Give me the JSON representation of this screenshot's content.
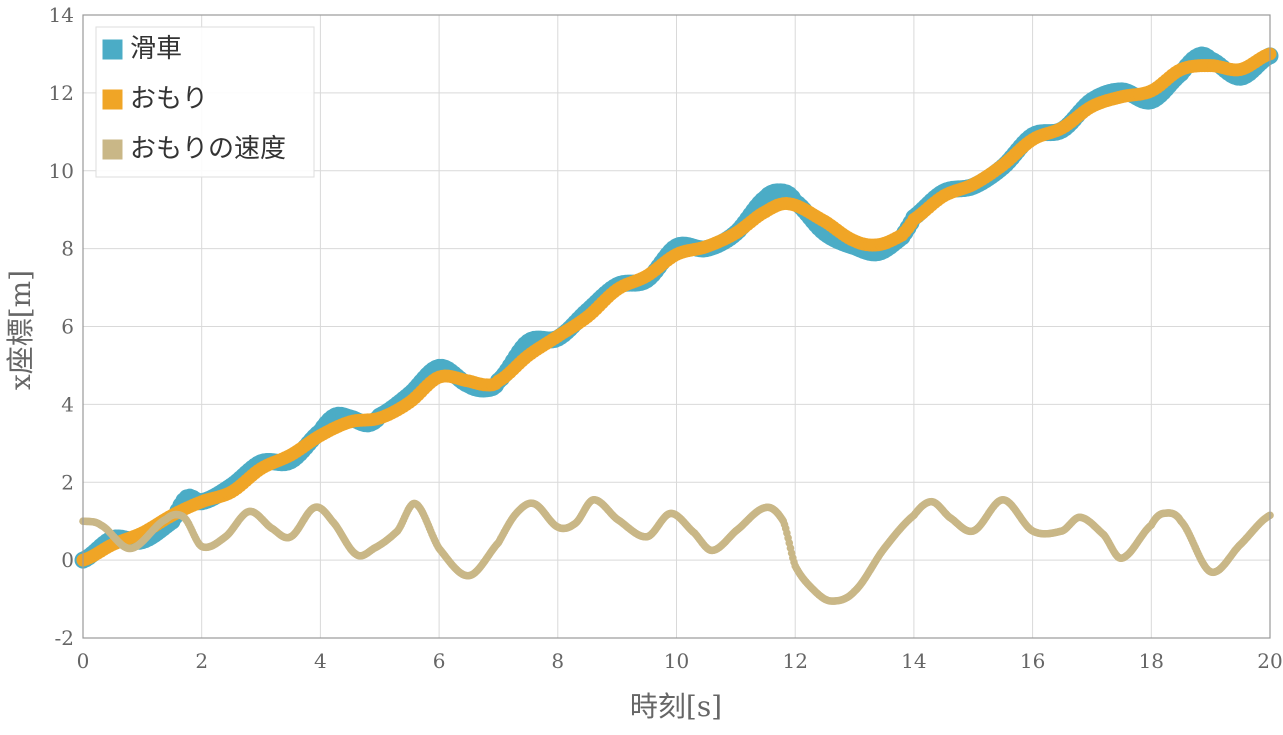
{
  "chart_data": {
    "type": "scatter",
    "xlabel": "時刻[s]",
    "ylabel": "x座標[m]",
    "xlim": [
      0,
      20
    ],
    "ylim": [
      -2,
      14
    ],
    "xticks": [
      "0",
      "2",
      "4",
      "6",
      "8",
      "10",
      "12",
      "14",
      "16",
      "18",
      "20"
    ],
    "yticks": [
      "-2",
      "0",
      "2",
      "4",
      "6",
      "8",
      "10",
      "12",
      "14"
    ],
    "grid": true,
    "legend_position": "top-left",
    "series": [
      {
        "name": "滑車",
        "color": "#4bacc6",
        "x": [
          0,
          0.5,
          1,
          1.5,
          1.75,
          2,
          2.5,
          3,
          3.5,
          4,
          4.25,
          4.5,
          4.8,
          5,
          5.5,
          6,
          6.5,
          6.8,
          7,
          7.5,
          8,
          8.5,
          9,
          9.5,
          10,
          10.5,
          11,
          11.5,
          11.8,
          12,
          12.5,
          13,
          13.4,
          13.8,
          14,
          14.5,
          15,
          15.5,
          16,
          16.5,
          17,
          17.5,
          18,
          18.5,
          18.8,
          19,
          19.5,
          20
        ],
        "y": [
          0.0,
          0.55,
          0.5,
          1.0,
          1.6,
          1.5,
          1.9,
          2.5,
          2.55,
          3.3,
          3.7,
          3.65,
          3.5,
          3.7,
          4.25,
          4.95,
          4.5,
          4.4,
          4.6,
          5.6,
          5.7,
          6.4,
          7.05,
          7.2,
          8.05,
          8.0,
          8.4,
          9.3,
          9.45,
          9.2,
          8.4,
          8.05,
          7.9,
          8.3,
          8.8,
          9.45,
          9.6,
          10.1,
          10.9,
          11.05,
          11.8,
          12.05,
          11.8,
          12.5,
          12.95,
          12.85,
          12.4,
          12.95
        ]
      },
      {
        "name": "おもり",
        "color": "#f0a526",
        "x": [
          0,
          0.5,
          1,
          1.5,
          2,
          2.5,
          3,
          3.5,
          4,
          4.5,
          5,
          5.5,
          6,
          6.5,
          6.8,
          7,
          7.5,
          8,
          8.5,
          9,
          9.5,
          10,
          10.5,
          11,
          11.5,
          11.9,
          12.5,
          13,
          13.4,
          13.8,
          14,
          14.5,
          15,
          15.5,
          16,
          16.5,
          17,
          17.5,
          18,
          18.5,
          19,
          19.5,
          20
        ],
        "y": [
          0.0,
          0.4,
          0.7,
          1.15,
          1.5,
          1.75,
          2.35,
          2.7,
          3.2,
          3.55,
          3.65,
          4.05,
          4.7,
          4.6,
          4.5,
          4.6,
          5.25,
          5.75,
          6.25,
          6.95,
          7.3,
          7.85,
          8.05,
          8.4,
          8.95,
          9.15,
          8.7,
          8.2,
          8.1,
          8.35,
          8.75,
          9.35,
          9.65,
          10.15,
          10.8,
          11.1,
          11.65,
          11.9,
          12.05,
          12.6,
          12.7,
          12.6,
          13.0
        ]
      },
      {
        "name": "おもりの速度",
        "color": "#c9b787",
        "x": [
          0,
          0.3,
          0.8,
          1.4,
          1.7,
          2,
          2.4,
          2.8,
          3.2,
          3.5,
          3.9,
          4.2,
          4.6,
          4.9,
          5.3,
          5.6,
          6,
          6.5,
          7,
          7.3,
          7.6,
          8,
          8.3,
          8.6,
          9,
          9.5,
          9.9,
          10.3,
          10.6,
          11,
          11.5,
          11.8,
          12,
          12.3,
          12.6,
          13,
          13.5,
          14,
          14.3,
          14.6,
          15,
          15.5,
          16,
          16.5,
          16.8,
          17.2,
          17.5,
          18,
          18.2,
          18.5,
          19,
          19.5,
          20
        ],
        "y": [
          1.0,
          0.9,
          0.3,
          1.05,
          1.1,
          0.35,
          0.6,
          1.25,
          0.8,
          0.6,
          1.35,
          1.0,
          0.15,
          0.3,
          0.75,
          1.45,
          0.3,
          -0.4,
          0.45,
          1.2,
          1.45,
          0.85,
          0.95,
          1.55,
          1.05,
          0.6,
          1.2,
          0.7,
          0.25,
          0.75,
          1.35,
          1.0,
          -0.15,
          -0.75,
          -1.05,
          -0.8,
          0.3,
          1.15,
          1.5,
          1.1,
          0.75,
          1.55,
          0.75,
          0.75,
          1.1,
          0.65,
          0.05,
          0.9,
          1.2,
          1.0,
          -0.3,
          0.4,
          1.15
        ]
      }
    ]
  }
}
